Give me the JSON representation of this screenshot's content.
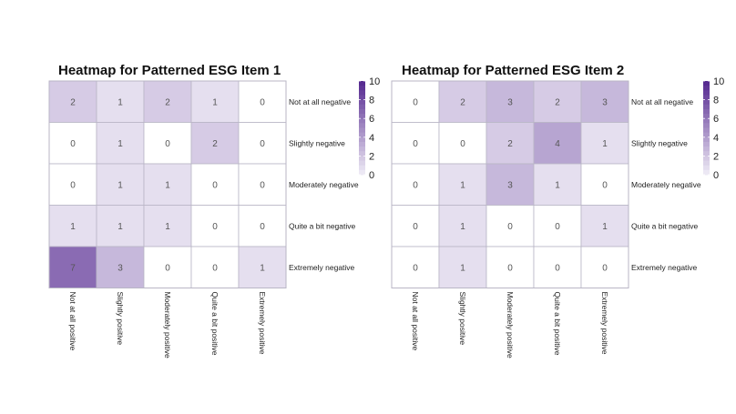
{
  "chart_data": [
    {
      "type": "heatmap",
      "title": "Heatmap for Patterned ESG Item 1",
      "columns": [
        "Not at all positive",
        "Slightly positive",
        "Moderately positive",
        "Quite a bit positive",
        "Extremely positive"
      ],
      "rows": [
        "Not at all negative",
        "Slightly negative",
        "Moderately negative",
        "Quite a bit negative",
        "Extremely negative"
      ],
      "values": [
        [
          2,
          1,
          2,
          1,
          0
        ],
        [
          0,
          1,
          0,
          2,
          0
        ],
        [
          0,
          1,
          1,
          0,
          0
        ],
        [
          1,
          1,
          1,
          0,
          0
        ],
        [
          7,
          3,
          0,
          0,
          1
        ]
      ],
      "legend": {
        "ticks": [
          "10",
          "8",
          "6",
          "4",
          "2",
          "0"
        ],
        "min": 0,
        "max": 10,
        "placement": "right"
      },
      "colors": {
        "low": "#ffffff",
        "high": "#54278f"
      }
    },
    {
      "type": "heatmap",
      "title": "Heatmap for Patterned ESG Item 2",
      "columns": [
        "Not at all positive",
        "Slightly positive",
        "Moderately positive",
        "Quite a bit positive",
        "Extremely positive"
      ],
      "rows": [
        "Not at all negative",
        "Slightly negative",
        "Moderately negative",
        "Quite a bit negative",
        "Extremely negative"
      ],
      "values": [
        [
          0,
          2,
          3,
          2,
          3
        ],
        [
          0,
          0,
          2,
          4,
          1
        ],
        [
          0,
          1,
          3,
          1,
          0
        ],
        [
          0,
          1,
          0,
          0,
          1
        ],
        [
          0,
          1,
          0,
          0,
          0
        ]
      ],
      "legend": {
        "ticks": [
          "10",
          "8",
          "6",
          "4",
          "2",
          "0"
        ],
        "min": 0,
        "max": 10,
        "placement": "right"
      },
      "colors": {
        "low": "#ffffff",
        "high": "#54278f"
      }
    }
  ]
}
